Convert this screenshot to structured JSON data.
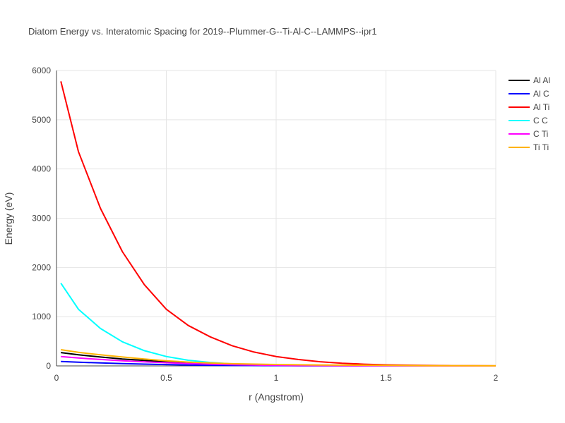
{
  "chart_data": {
    "type": "line",
    "title": "Diatom Energy vs. Interatomic Spacing for 2019--Plummer-G--Ti-Al-C--LAMMPS--ipr1",
    "xlabel": "r (Angstrom)",
    "ylabel": "Energy (eV)",
    "xlim": [
      0,
      2
    ],
    "ylim": [
      0,
      6000
    ],
    "x_ticks": [
      "0",
      "0.5",
      "1",
      "1.5",
      "2"
    ],
    "y_ticks": [
      "0",
      "1000",
      "2000",
      "3000",
      "4000",
      "5000",
      "6000"
    ],
    "grid": true,
    "legend_position": "top-right",
    "series": [
      {
        "name": "Al Al",
        "color": "#000000",
        "x": [
          0.02,
          0.1,
          0.2,
          0.3,
          0.4,
          0.5,
          0.6,
          0.7,
          0.8,
          1.0,
          1.2,
          1.5,
          2.0
        ],
        "y": [
          270,
          225,
          180,
          140,
          110,
          80,
          55,
          35,
          20,
          8,
          3,
          1,
          0
        ]
      },
      {
        "name": "Al C",
        "color": "#0000ff",
        "x": [
          0.02,
          0.1,
          0.2,
          0.3,
          0.4,
          0.5,
          0.6,
          0.7,
          0.8,
          1.0,
          1.2,
          1.5,
          2.0
        ],
        "y": [
          90,
          75,
          60,
          47,
          36,
          27,
          19,
          13,
          9,
          4,
          2,
          1,
          0
        ]
      },
      {
        "name": "Al Ti",
        "color": "#ff0000",
        "x": [
          0.02,
          0.1,
          0.2,
          0.3,
          0.4,
          0.5,
          0.6,
          0.7,
          0.8,
          0.9,
          1.0,
          1.1,
          1.2,
          1.3,
          1.4,
          1.5,
          1.6,
          1.7,
          1.8,
          1.9,
          2.0
        ],
        "y": [
          5780,
          4350,
          3200,
          2320,
          1650,
          1150,
          820,
          590,
          410,
          280,
          190,
          130,
          85,
          55,
          35,
          22,
          14,
          8,
          5,
          3,
          2
        ]
      },
      {
        "name": "C C",
        "color": "#00ffff",
        "x": [
          0.02,
          0.1,
          0.2,
          0.3,
          0.4,
          0.5,
          0.6,
          0.7,
          0.8,
          0.9,
          1.0,
          1.2,
          1.5,
          2.0
        ],
        "y": [
          1680,
          1150,
          760,
          490,
          310,
          190,
          115,
          70,
          40,
          22,
          12,
          4,
          1,
          0
        ]
      },
      {
        "name": "C Ti",
        "color": "#ff00ff",
        "x": [
          0.02,
          0.1,
          0.2,
          0.3,
          0.4,
          0.5,
          0.6,
          0.7,
          0.8,
          1.0,
          1.2,
          1.5,
          2.0
        ],
        "y": [
          190,
          160,
          130,
          105,
          82,
          64,
          48,
          35,
          25,
          12,
          5,
          2,
          0
        ]
      },
      {
        "name": "Ti Ti",
        "color": "#ffb300",
        "x": [
          0.02,
          0.1,
          0.2,
          0.3,
          0.4,
          0.5,
          0.6,
          0.7,
          0.8,
          1.0,
          1.2,
          1.5,
          1.7,
          2.0
        ],
        "y": [
          330,
          275,
          225,
          180,
          140,
          105,
          78,
          58,
          45,
          28,
          18,
          10,
          5,
          2
        ]
      }
    ]
  }
}
